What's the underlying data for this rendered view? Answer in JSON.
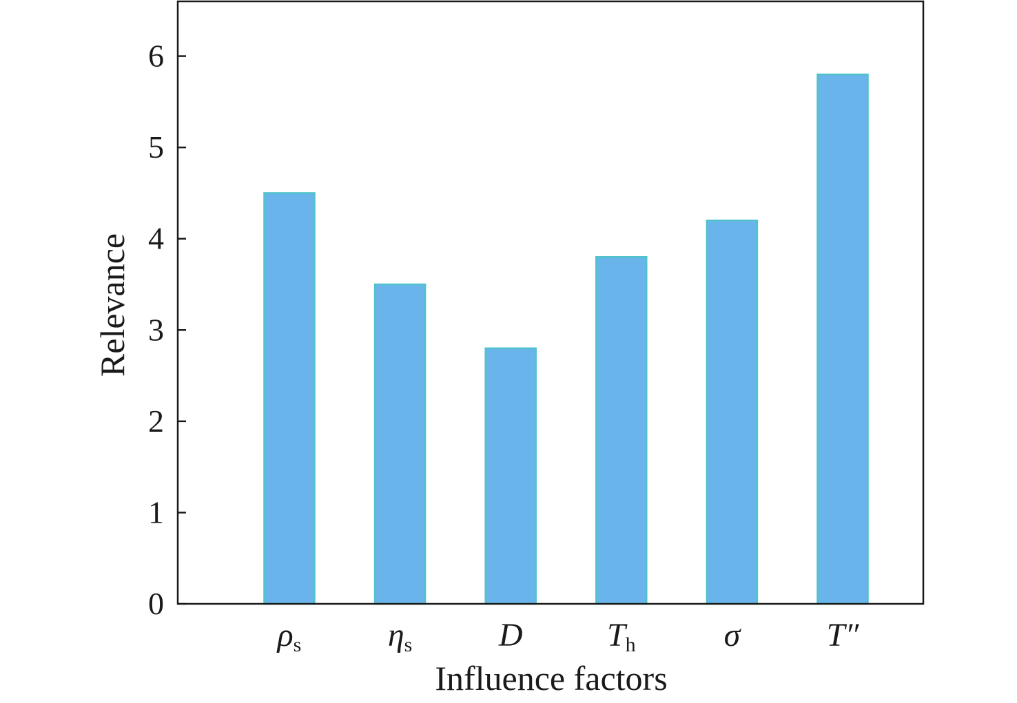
{
  "chart_data": {
    "type": "bar",
    "categories": [
      {
        "main": "ρ",
        "sub": "s"
      },
      {
        "main": "η",
        "sub": "s"
      },
      {
        "main": "D",
        "sub": ""
      },
      {
        "main": "T",
        "sub": "h"
      },
      {
        "main": "σ",
        "sub": ""
      },
      {
        "main": "T″",
        "sub": ""
      }
    ],
    "values": [
      4.5,
      3.5,
      2.8,
      3.8,
      4.2,
      5.8
    ],
    "xlabel": "Influence factors",
    "ylabel": "Relevance",
    "ylim": [
      0,
      6.6
    ],
    "yticks": [
      "0",
      "1",
      "2",
      "3",
      "4",
      "5",
      "6"
    ],
    "grid": false,
    "bar_color": "#6ab4ec",
    "bar_edge_color": "#4fc3c9"
  }
}
